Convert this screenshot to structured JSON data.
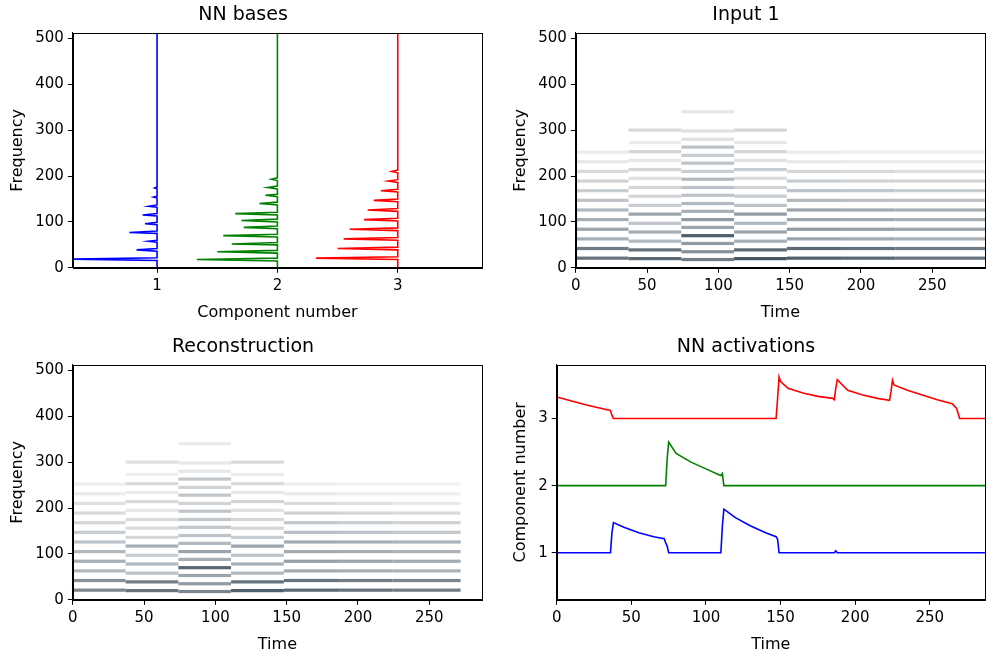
{
  "chart_data": [
    {
      "type": "line",
      "title": "NN bases",
      "x_label": "Component number",
      "y_label": "Frequency",
      "xlim": [
        0.3,
        3.7
      ],
      "xticks": [
        1,
        2,
        3
      ],
      "ylim": [
        0,
        512
      ],
      "yticks": [
        0,
        100,
        200,
        300,
        400,
        500
      ],
      "grid": false,
      "series": [
        {
          "color": "#0000ff",
          "x": [
            1,
            1,
            0.3,
            1,
            1,
            0.83,
            1,
            1,
            0.93,
            1,
            1,
            0.77,
            1,
            1,
            0.9,
            1,
            1,
            0.88,
            1,
            1,
            0.93,
            1,
            1,
            0.97,
            1,
            1,
            0.98,
            1,
            1
          ],
          "y": [
            0,
            16,
            19,
            22,
            36,
            39,
            42,
            56,
            58,
            60,
            75,
            77,
            80,
            94,
            96,
            99,
            113,
            115,
            118,
            132,
            134,
            137,
            152,
            154,
            156,
            172,
            174,
            176,
            512
          ]
        },
        {
          "color": "#008000",
          "x": [
            2,
            2,
            1.33,
            2,
            2,
            1.5,
            2,
            2,
            1.62,
            2,
            2,
            1.55,
            2,
            2,
            1.72,
            2,
            2,
            1.7,
            2,
            2,
            1.65,
            2,
            2,
            1.85,
            2,
            2,
            1.9,
            2,
            2,
            1.92,
            2,
            2,
            1.95,
            2,
            2
          ],
          "y": [
            0,
            15,
            18,
            21,
            32,
            35,
            38,
            50,
            52,
            55,
            67,
            70,
            73,
            85,
            88,
            91,
            100,
            103,
            106,
            115,
            118,
            121,
            137,
            140,
            143,
            155,
            158,
            160,
            172,
            175,
            178,
            190,
            193,
            196,
            512
          ]
        },
        {
          "color": "#ff0000",
          "x": [
            3,
            3,
            2.32,
            3,
            3,
            2.5,
            3,
            3,
            2.55,
            3,
            3,
            2.6,
            3,
            3,
            2.72,
            3,
            3,
            2.75,
            3,
            3,
            2.8,
            3,
            3,
            2.86,
            3,
            3,
            2.92,
            3,
            3,
            2.95,
            3,
            3
          ],
          "y": [
            0,
            18,
            21,
            24,
            39,
            42,
            45,
            60,
            63,
            66,
            81,
            84,
            87,
            102,
            105,
            108,
            123,
            126,
            129,
            144,
            147,
            150,
            165,
            168,
            171,
            186,
            189,
            192,
            207,
            210,
            213,
            512
          ]
        }
      ]
    },
    {
      "type": "heatmap",
      "title": "Input 1",
      "x_label": "Time",
      "y_label": "Frequency",
      "xlim": [
        0,
        287
      ],
      "xticks": [
        0,
        50,
        100,
        150,
        200,
        250
      ],
      "ylim": [
        0,
        512
      ],
      "yticks": [
        0,
        100,
        200,
        300,
        400,
        500
      ],
      "grid": false,
      "segments": [
        {
          "t": [
            0,
            37
          ],
          "f": [
            21,
            42,
            63,
            84,
            105,
            126,
            147,
            168,
            189,
            210,
            231,
            252
          ],
          "v": [
            0.7,
            0.65,
            0.4,
            0.45,
            0.4,
            0.35,
            0.3,
            0.25,
            0.22,
            0.18,
            0.12,
            0.1
          ]
        },
        {
          "t": [
            37,
            74
          ],
          "f": [
            20,
            39,
            58,
            78,
            97,
            117,
            136,
            156,
            175,
            195,
            214,
            234,
            253,
            273,
            300
          ],
          "v": [
            0.75,
            0.7,
            0.35,
            0.4,
            0.3,
            0.45,
            0.25,
            0.2,
            0.2,
            0.15,
            0.2,
            0.12,
            0.2,
            0.1,
            0.18
          ]
        },
        {
          "t": [
            74,
            111
          ],
          "f": [
            18,
            35,
            53,
            70,
            88,
            105,
            123,
            140,
            158,
            175,
            193,
            210,
            228,
            245,
            263,
            280,
            298,
            340
          ],
          "v": [
            0.65,
            0.55,
            0.5,
            0.8,
            0.45,
            0.5,
            0.4,
            0.35,
            0.3,
            0.3,
            0.35,
            0.25,
            0.3,
            0.25,
            0.3,
            0.15,
            0.15,
            0.12
          ]
        },
        {
          "t": [
            111,
            148
          ],
          "f": [
            20,
            39,
            58,
            78,
            97,
            117,
            136,
            156,
            175,
            195,
            214,
            234,
            253,
            273,
            300
          ],
          "v": [
            0.85,
            0.75,
            0.4,
            0.45,
            0.35,
            0.5,
            0.3,
            0.25,
            0.22,
            0.18,
            0.25,
            0.15,
            0.2,
            0.12,
            0.2
          ]
        },
        {
          "t": [
            148,
            186
          ],
          "f": [
            21,
            42,
            63,
            84,
            105,
            126,
            147,
            168,
            189,
            210,
            231,
            252
          ],
          "v": [
            0.8,
            0.75,
            0.45,
            0.5,
            0.45,
            0.45,
            0.35,
            0.3,
            0.25,
            0.2,
            0.12,
            0.1
          ]
        },
        {
          "t": [
            186,
            224
          ],
          "f": [
            21,
            42,
            63,
            84,
            105,
            126,
            147,
            168,
            189,
            210,
            231,
            252
          ],
          "v": [
            0.75,
            0.7,
            0.42,
            0.48,
            0.42,
            0.42,
            0.32,
            0.28,
            0.22,
            0.18,
            0.1,
            0.08
          ]
        },
        {
          "t": [
            224,
            287
          ],
          "f": [
            21,
            42,
            63,
            84,
            105,
            126,
            147,
            168,
            189,
            210,
            231,
            252
          ],
          "v": [
            0.7,
            0.65,
            0.4,
            0.45,
            0.4,
            0.4,
            0.3,
            0.25,
            0.2,
            0.15,
            0.1,
            0.08
          ]
        }
      ]
    },
    {
      "type": "heatmap",
      "title": "Reconstruction",
      "x_label": "Time",
      "y_label": "Frequency",
      "xlim": [
        0,
        287
      ],
      "xticks": [
        0,
        50,
        100,
        150,
        200,
        250
      ],
      "ylim": [
        0,
        512
      ],
      "yticks": [
        0,
        100,
        200,
        300,
        400,
        500
      ],
      "grid": false,
      "segments": [
        {
          "t": [
            0,
            37
          ],
          "f": [
            21,
            42,
            63,
            84,
            105,
            126,
            147,
            168,
            189,
            210,
            231,
            252
          ],
          "v": [
            0.6,
            0.55,
            0.35,
            0.4,
            0.35,
            0.3,
            0.25,
            0.2,
            0.18,
            0.15,
            0.1,
            0.08
          ]
        },
        {
          "t": [
            37,
            74
          ],
          "f": [
            20,
            39,
            58,
            78,
            97,
            117,
            136,
            156,
            175,
            195,
            214,
            234,
            253,
            273,
            300
          ],
          "v": [
            0.7,
            0.65,
            0.3,
            0.35,
            0.25,
            0.4,
            0.2,
            0.18,
            0.18,
            0.12,
            0.18,
            0.1,
            0.18,
            0.08,
            0.15
          ]
        },
        {
          "t": [
            74,
            111
          ],
          "f": [
            18,
            35,
            53,
            70,
            88,
            105,
            123,
            140,
            158,
            175,
            193,
            210,
            228,
            245,
            263,
            280,
            298,
            340
          ],
          "v": [
            0.6,
            0.5,
            0.45,
            0.75,
            0.4,
            0.45,
            0.35,
            0.3,
            0.28,
            0.28,
            0.3,
            0.22,
            0.28,
            0.22,
            0.28,
            0.12,
            0.12,
            0.1
          ]
        },
        {
          "t": [
            111,
            148
          ],
          "f": [
            20,
            39,
            58,
            78,
            97,
            117,
            136,
            156,
            175,
            195,
            214,
            234,
            253,
            273,
            300
          ],
          "v": [
            0.8,
            0.7,
            0.35,
            0.4,
            0.3,
            0.45,
            0.25,
            0.2,
            0.2,
            0.15,
            0.22,
            0.12,
            0.18,
            0.1,
            0.18
          ]
        },
        {
          "t": [
            148,
            186
          ],
          "f": [
            21,
            42,
            63,
            84,
            105,
            126,
            147,
            168,
            189,
            210,
            231,
            252
          ],
          "v": [
            0.75,
            0.7,
            0.42,
            0.48,
            0.42,
            0.42,
            0.32,
            0.28,
            0.22,
            0.18,
            0.1,
            0.08
          ]
        },
        {
          "t": [
            186,
            224
          ],
          "f": [
            21,
            42,
            63,
            84,
            105,
            126,
            147,
            168,
            189,
            210,
            231,
            252
          ],
          "v": [
            0.7,
            0.65,
            0.4,
            0.45,
            0.4,
            0.4,
            0.3,
            0.25,
            0.2,
            0.15,
            0.08,
            0.06
          ]
        },
        {
          "t": [
            224,
            272
          ],
          "f": [
            21,
            42,
            63,
            84,
            105,
            126,
            147,
            168,
            189,
            210,
            231,
            252
          ],
          "v": [
            0.65,
            0.6,
            0.38,
            0.42,
            0.38,
            0.38,
            0.28,
            0.22,
            0.18,
            0.12,
            0.08,
            0.06
          ]
        }
      ]
    },
    {
      "type": "line",
      "title": "NN activations",
      "x_label": "Time",
      "y_label": "Component number",
      "xlim": [
        0,
        287
      ],
      "xticks": [
        0,
        50,
        100,
        150,
        200,
        250
      ],
      "ylim": [
        0.3,
        3.8
      ],
      "yticks": [
        1,
        2,
        3
      ],
      "grid": false,
      "series": [
        {
          "color": "#0000ff",
          "x": [
            0,
            36,
            37,
            38,
            45,
            55,
            65,
            72,
            73,
            74,
            75,
            110,
            111,
            112,
            120,
            130,
            140,
            147,
            148,
            149,
            186,
            187,
            188,
            287
          ],
          "y": [
            1,
            1,
            1.3,
            1.45,
            1.38,
            1.3,
            1.24,
            1.21,
            1.15,
            1.1,
            1,
            1,
            1.4,
            1.65,
            1.52,
            1.4,
            1.3,
            1.24,
            1.2,
            1,
            1,
            1.03,
            1,
            1
          ]
        },
        {
          "color": "#008000",
          "x": [
            0,
            73,
            74,
            75,
            80,
            90,
            100,
            109,
            110,
            111,
            112,
            287
          ],
          "y": [
            2,
            2,
            2.4,
            2.65,
            2.48,
            2.35,
            2.25,
            2.16,
            2.15,
            2.18,
            2,
            2
          ]
        },
        {
          "color": "#ff0000",
          "x": [
            0,
            10,
            20,
            30,
            36,
            37,
            38,
            147,
            148,
            149,
            150,
            155,
            165,
            175,
            185,
            186,
            187,
            188,
            195,
            205,
            215,
            223,
            224,
            225,
            226,
            235,
            245,
            255,
            265,
            268,
            270,
            287
          ],
          "y": [
            3.32,
            3.26,
            3.2,
            3.15,
            3.12,
            3.05,
            3,
            3,
            3.3,
            3.62,
            3.55,
            3.45,
            3.38,
            3.33,
            3.3,
            3.28,
            3.45,
            3.58,
            3.42,
            3.35,
            3.3,
            3.27,
            3.4,
            3.57,
            3.5,
            3.42,
            3.35,
            3.28,
            3.22,
            3.15,
            3,
            3
          ]
        }
      ]
    }
  ]
}
